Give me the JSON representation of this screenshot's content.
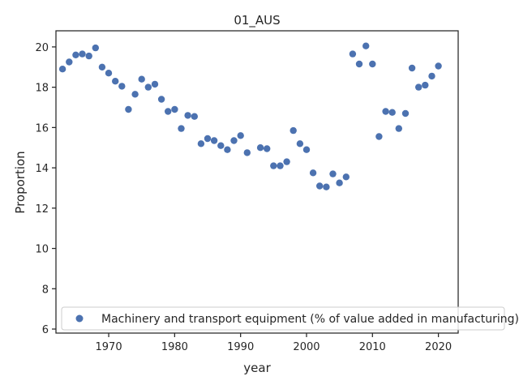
{
  "chart_data": {
    "type": "scatter",
    "title": "01_AUS",
    "xlabel": "year",
    "ylabel": "Proportion",
    "xlim": [
      1962,
      2023
    ],
    "ylim": [
      5.8,
      20.8
    ],
    "xticks": [
      1970,
      1980,
      1990,
      2000,
      2010,
      2020
    ],
    "yticks": [
      6,
      8,
      10,
      12,
      14,
      16,
      18,
      20
    ],
    "grid": false,
    "legend_position": "lower-center",
    "series": [
      {
        "name": "Machinery and transport equipment (% of value added in manufacturing)",
        "color": "#4c72b0",
        "points": [
          [
            1963,
            18.9
          ],
          [
            1964,
            19.25
          ],
          [
            1965,
            19.6
          ],
          [
            1966,
            19.65
          ],
          [
            1967,
            19.55
          ],
          [
            1968,
            19.95
          ],
          [
            1969,
            19.0
          ],
          [
            1970,
            18.7
          ],
          [
            1971,
            18.3
          ],
          [
            1972,
            18.05
          ],
          [
            1973,
            16.9
          ],
          [
            1974,
            17.65
          ],
          [
            1975,
            18.4
          ],
          [
            1976,
            18.0
          ],
          [
            1977,
            18.15
          ],
          [
            1978,
            17.4
          ],
          [
            1979,
            16.8
          ],
          [
            1980,
            16.9
          ],
          [
            1981,
            15.95
          ],
          [
            1982,
            16.6
          ],
          [
            1983,
            16.55
          ],
          [
            1984,
            15.2
          ],
          [
            1985,
            15.45
          ],
          [
            1986,
            15.35
          ],
          [
            1987,
            15.1
          ],
          [
            1988,
            14.9
          ],
          [
            1989,
            15.35
          ],
          [
            1990,
            15.6
          ],
          [
            1991,
            14.75
          ],
          [
            1993,
            15.0
          ],
          [
            1994,
            14.95
          ],
          [
            1995,
            14.1
          ],
          [
            1996,
            14.1
          ],
          [
            1997,
            14.3
          ],
          [
            1998,
            15.85
          ],
          [
            1999,
            15.2
          ],
          [
            2000,
            14.9
          ],
          [
            2001,
            13.75
          ],
          [
            2002,
            13.1
          ],
          [
            2003,
            13.05
          ],
          [
            2004,
            13.7
          ],
          [
            2005,
            13.25
          ],
          [
            2006,
            13.55
          ],
          [
            2007,
            19.65
          ],
          [
            2008,
            19.15
          ],
          [
            2009,
            20.05
          ],
          [
            2010,
            19.15
          ],
          [
            2011,
            15.55
          ],
          [
            2012,
            16.8
          ],
          [
            2013,
            16.75
          ],
          [
            2014,
            15.95
          ],
          [
            2015,
            16.7
          ],
          [
            2016,
            18.95
          ],
          [
            2017,
            18.0
          ],
          [
            2018,
            18.1
          ],
          [
            2019,
            18.55
          ],
          [
            2020,
            19.05
          ]
        ]
      }
    ]
  }
}
